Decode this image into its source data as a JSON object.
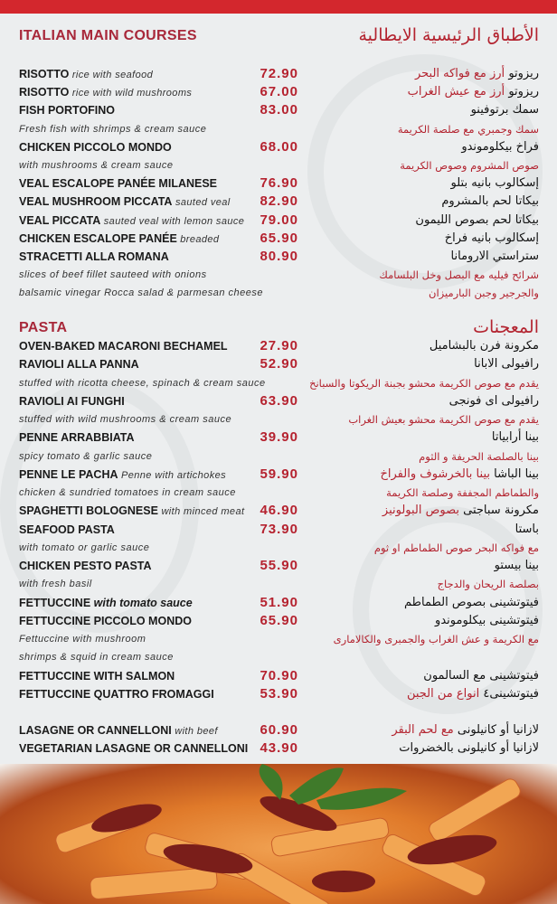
{
  "colors": {
    "accent": "#d3272d",
    "heading": "#a8283a",
    "price": "#b5222f"
  },
  "main_courses": {
    "title": "ITALIAN MAIN COURSES",
    "title_ar": "الأطباق الرئيسية الايطالية",
    "items": [
      {
        "name": "RISOTTO",
        "note": "rice with seafood",
        "price": "72.90",
        "ar": "ريزوتو",
        "ar_note": "أرز مع فواكه البحر"
      },
      {
        "name": "RISOTTO",
        "note": "rice with wild mushrooms",
        "price": "67.00",
        "ar": "ريزوتو",
        "ar_note": "أرز مع عيش الغراب"
      },
      {
        "name": "FISH PORTOFINO",
        "price": "83.00",
        "ar": "سمك برتوفينو",
        "desc": [
          "Fresh fish with shrimps & cream sauce"
        ],
        "ar_desc": [
          "سمك وجمبري مع صلصة الكريمة"
        ]
      },
      {
        "name": "CHICKEN PICCOLO MONDO",
        "price": "68.00",
        "ar": "فراخ بيكلوموندو",
        "desc": [
          "with mushrooms & cream sauce"
        ],
        "ar_desc": [
          "صوص المشروم وصوص الكريمة"
        ]
      },
      {
        "name": "VEAL ESCALOPE PANÉE MILANESE",
        "price": "76.90",
        "ar": "إسكالوب بانيه بتلو"
      },
      {
        "name": "VEAL MUSHROOM PICCATA",
        "note": "sauted veal",
        "price": "82.90",
        "ar": "بيكاتا لحم بالمشروم"
      },
      {
        "name": "VEAL PICCATA",
        "note": "sauted veal with lemon sauce",
        "price": "79.00",
        "ar": "بيكاتا لحم بصوص الليمون"
      },
      {
        "name": "CHICKEN ESCALOPE PANÉE",
        "note": "breaded",
        "price": "65.90",
        "ar": "إسكالوب بانيه فراخ"
      },
      {
        "name": "STRACETTI ALLA ROMANA",
        "price": "80.90",
        "ar": "ستراستي الارومانا",
        "desc": [
          "slices of beef fillet sauteed with onions",
          "balsamic vinegar Rocca salad & parmesan cheese"
        ],
        "ar_desc": [
          "شرائح فيليه مع البصل وخل البلسامك",
          "والجرجير وجبن البارميزان"
        ]
      }
    ]
  },
  "pasta": {
    "title": "PASTA",
    "title_ar": "المعجنات",
    "items": [
      {
        "name": "OVEN-BAKED MACARONI BECHAMEL",
        "price": "27.90",
        "ar": "مكرونة فرن بالبشاميل"
      },
      {
        "name": "RAVIOLI ALLA PANNA",
        "price": "52.90",
        "ar": "رافيولى الابانا",
        "desc": [
          "stuffed with ricotta cheese, spinach & cream sauce"
        ],
        "ar_desc": [
          "يقدم مع صوص الكريمة محشو بجبنة الريكوتا والسبانخ"
        ]
      },
      {
        "name": "RAVIOLI AI FUNGHI",
        "price": "63.90",
        "ar": "رافيولى اى فونجى",
        "desc": [
          "stuffed with wild mushrooms & cream sauce"
        ],
        "ar_desc": [
          "يقدم مع صوص الكريمة محشو بعيش الغراب"
        ]
      },
      {
        "name": "PENNE ARRABBIATA",
        "price": "39.90",
        "ar": "بينا أرابياتا",
        "desc": [
          "spicy tomato & garlic sauce"
        ],
        "ar_desc": [
          "بينا بالصلصة الحريفة و الثوم"
        ]
      },
      {
        "name": "PENNE LE PACHA",
        "note": "Penne with artichokes",
        "price": "59.90",
        "ar": "بينا الباشا",
        "ar_note": "بينا بالخرشوف والفراخ",
        "desc": [
          "chicken & sundried tomatoes in cream sauce"
        ],
        "ar_desc": [
          "والطماطم المجففة وصلصة الكريمة"
        ]
      },
      {
        "name": "SPAGHETTI BOLOGNESE",
        "note": "with minced meat",
        "price": "46.90",
        "ar": "مكرونة سباجتى",
        "ar_note": "بصوص البولونيز"
      },
      {
        "name": "SEAFOOD PASTA",
        "price": "73.90",
        "ar": "باستا",
        "desc": [
          "with tomato or garlic sauce"
        ],
        "ar_desc": [
          "مع فواكه البحر  صوص الطماطم او ثوم"
        ]
      },
      {
        "name": "CHICKEN PESTO PASTA",
        "price": "55.90",
        "ar": "بينا بيستو",
        "desc": [
          "with fresh basil"
        ],
        "ar_desc": [
          "بصلصة الريحان والدجاج"
        ]
      },
      {
        "name": "FETTUCCINE",
        "name_italic": "with tomato sauce",
        "price": "51.90",
        "ar": "فيتوتشينى بصوص الطماطم"
      },
      {
        "name": "FETTUCCINE PICCOLO MONDO",
        "price": "65.90",
        "ar": "فيتوتشينى بيكلوموندو",
        "desc": [
          "Fettuccine with mushroom",
          " shrimps & squid in cream sauce"
        ],
        "ar_desc": [
          "مع الكريمة و عش الغراب والجمبرى والكالامارى"
        ]
      },
      {
        "name": "FETTUCCINE WITH SALMON",
        "price": "70.90",
        "ar": "فيتوتشينى مع السالمون"
      },
      {
        "name": "FETTUCCINE QUATTRO FROMAGGI",
        "price": "53.90",
        "ar": "فيتوتشينى٤",
        "ar_note": "انواع من الجبن"
      }
    ]
  },
  "lasagne": {
    "items": [
      {
        "name": "LASAGNE OR CANNELLONI",
        "note": "with beef",
        "price": "60.90",
        "ar": "لازانيا  أو كانيلونى",
        "ar_note": "مع لحم البقر"
      },
      {
        "name": "VEGETARIAN LASAGNE OR CANNELLONI",
        "price": "43.90",
        "ar": "لازانيا أو كانيلونى بالخضروات"
      }
    ]
  }
}
